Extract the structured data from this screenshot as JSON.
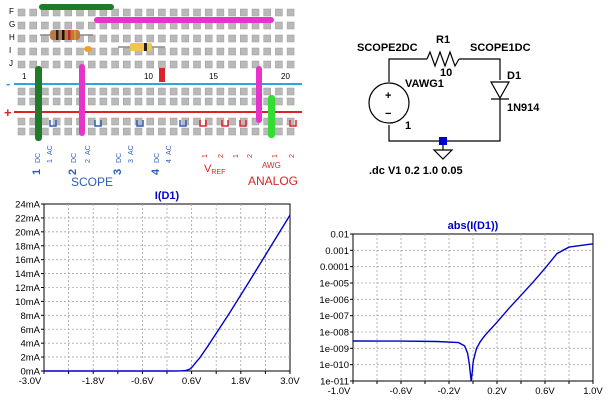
{
  "breadboard": {
    "row_labels": [
      "F",
      "G",
      "H",
      "I",
      "J"
    ],
    "col_numbers": [
      "1",
      "5",
      "10",
      "15",
      "20"
    ],
    "rail_minus": "-",
    "rail_plus": "+",
    "scope_group": {
      "pins": [
        "1",
        "DC",
        "1",
        "AC",
        "2",
        "DC",
        "2",
        "AC",
        "3",
        "DC",
        "3",
        "AC",
        "4",
        "DC",
        "4",
        "AC"
      ],
      "label": "SCOPE"
    },
    "vref_group": {
      "pins": [
        "1",
        "2",
        "1",
        "2"
      ],
      "label": "V",
      "label_sub": "REF"
    },
    "analog_group": {
      "awg_label": "AWG",
      "pins": [
        "1",
        "2"
      ],
      "label": "ANALOG"
    },
    "colors": {
      "scope": "#2e5dbb",
      "analog": "#d9252a",
      "green_wire": "#1f7a2a",
      "magenta_wire": "#e633cc",
      "light_green_wire": "#33dd33",
      "blue_rail": "#29a8e0",
      "red_rail": "#d9252a"
    }
  },
  "schematic": {
    "labels": {
      "scope2": "SCOPE2DC",
      "scope1": "SCOPE1DC",
      "resistor": "R1",
      "resistor_value": "10",
      "source": "VAWG1",
      "source_value": "1",
      "diode": "D1",
      "diode_model": "1N914",
      "plus": "+",
      "minus": "−"
    },
    "directive": ".dc V1 0.2 1.0 0.05"
  },
  "chart_data": [
    {
      "type": "line",
      "title": "I(D1)",
      "xlabel": "",
      "ylabel": "",
      "xlim": [
        -3.0,
        3.0
      ],
      "ylim": [
        0,
        24
      ],
      "x_ticks": [
        "-3.0V",
        "-2.4V",
        "-1.8V",
        "-1.2V",
        "-0.6V",
        "0.0V",
        "0.6V",
        "1.2V",
        "1.8V",
        "2.4V",
        "3.0V"
      ],
      "x_tick_values": [
        -3.0,
        -2.4,
        -1.8,
        -1.2,
        -0.6,
        0.0,
        0.6,
        1.2,
        1.8,
        2.4,
        3.0
      ],
      "x_tick_labels_shown": [
        "-3.0V",
        "-1.8V",
        "-0.6V",
        "0.6V",
        "1.8V",
        "3.0V"
      ],
      "y_ticks": [
        "0mA",
        "2mA",
        "4mA",
        "6mA",
        "8mA",
        "10mA",
        "12mA",
        "14mA",
        "16mA",
        "18mA",
        "20mA",
        "22mA",
        "24mA"
      ],
      "y_tick_values": [
        0,
        2,
        4,
        6,
        8,
        10,
        12,
        14,
        16,
        18,
        20,
        22,
        24
      ],
      "grid": true,
      "series": [
        {
          "color": "#0000cc",
          "x": [
            -3.0,
            -2.0,
            -1.0,
            0.0,
            0.3,
            0.45,
            0.55,
            0.62,
            0.7,
            0.8,
            1.0,
            1.5,
            2.0,
            2.5,
            3.0
          ],
          "y": [
            0,
            0,
            0,
            0,
            0.01,
            0.06,
            0.25,
            0.6,
            1.2,
            1.9,
            3.6,
            8.1,
            12.8,
            17.6,
            22.4
          ]
        }
      ]
    },
    {
      "type": "line",
      "title": "abs(I(D1))",
      "xlabel": "",
      "ylabel": "",
      "xlim": [
        -1.0,
        1.0
      ],
      "ylim": [
        -11,
        -2
      ],
      "y_scale": "log",
      "x_ticks": [
        "-1.0V",
        "-0.8V",
        "-0.6V",
        "-0.4V",
        "-0.2V",
        "0.0V",
        "0.2V",
        "0.4V",
        "0.6V",
        "0.8V",
        "1.0V"
      ],
      "x_tick_values": [
        -1.0,
        -0.8,
        -0.6,
        -0.4,
        -0.2,
        0.0,
        0.2,
        0.4,
        0.6,
        0.8,
        1.0
      ],
      "x_tick_labels_shown": [
        "-1.0V",
        "-0.6V",
        "-0.2V",
        "0.2V",
        "0.6V",
        "1.0V"
      ],
      "y_ticks": [
        "0.01",
        "0.001",
        "0.0001",
        "1e-005",
        "1e-006",
        "1e-007",
        "1e-008",
        "1e-009",
        "1e-010",
        "1e-011"
      ],
      "y_tick_values": [
        -2,
        -3,
        -4,
        -5,
        -6,
        -7,
        -8,
        -9,
        -10,
        -11
      ],
      "grid": true,
      "series": [
        {
          "color": "#0000cc",
          "x": [
            -1.0,
            -0.6,
            -0.3,
            -0.12,
            -0.07,
            -0.045,
            -0.03,
            -0.015,
            -0.005,
            0.0,
            0.005,
            0.015,
            0.03,
            0.06,
            0.1,
            0.2,
            0.3,
            0.4,
            0.5,
            0.6,
            0.7,
            0.8,
            1.0
          ],
          "y": [
            -8.55,
            -8.56,
            -8.58,
            -8.65,
            -8.85,
            -9.3,
            -10.0,
            -11.0,
            -10.4,
            -9.9,
            -9.7,
            -9.4,
            -9.0,
            -8.6,
            -8.2,
            -7.4,
            -6.55,
            -5.75,
            -4.95,
            -4.1,
            -3.2,
            -2.8,
            -2.6
          ]
        }
      ]
    }
  ]
}
